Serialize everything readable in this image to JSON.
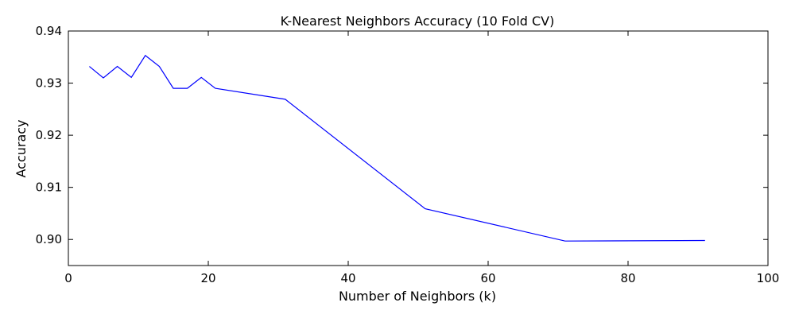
{
  "chart_data": {
    "type": "line",
    "title": "K-Nearest Neighbors Accuracy (10 Fold CV)",
    "xlabel": "Number of Neighbors (k)",
    "ylabel": "Accuracy",
    "xlim": [
      0,
      100
    ],
    "ylim": [
      0.895,
      0.94
    ],
    "xticks": [
      0,
      20,
      40,
      60,
      80,
      100
    ],
    "xtick_labels": [
      "0",
      "20",
      "40",
      "60",
      "80",
      "100"
    ],
    "yticks": [
      0.9,
      0.91,
      0.92,
      0.93,
      0.94
    ],
    "ytick_labels": [
      "0.90",
      "0.91",
      "0.92",
      "0.93",
      "0.94"
    ],
    "grid": false,
    "series": [
      {
        "color": "#0000ff",
        "x": [
          3,
          5,
          7,
          9,
          11,
          13,
          15,
          17,
          19,
          21,
          31,
          51,
          71,
          91
        ],
        "y": [
          0.9332,
          0.931,
          0.9332,
          0.9311,
          0.9353,
          0.9332,
          0.929,
          0.929,
          0.9311,
          0.929,
          0.9269,
          0.9059,
          0.8997,
          0.8998
        ]
      }
    ]
  }
}
